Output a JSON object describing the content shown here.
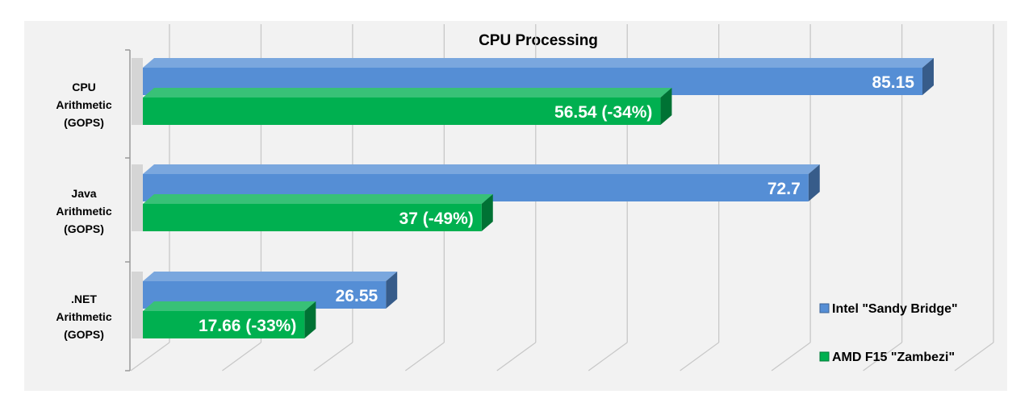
{
  "chart_data": {
    "type": "bar",
    "orientation": "horizontal",
    "title": "CPU Processing",
    "categories": [
      [
        "CPU",
        "Arithmetic",
        "(GOPS)"
      ],
      [
        "Java",
        "Arithmetic",
        "(GOPS)"
      ],
      [
        ".NET",
        "Arithmetic",
        "(GOPS)"
      ]
    ],
    "series": [
      {
        "name": "Intel \"Sandy Bridge\"",
        "color": "#558ed5",
        "values": [
          85.15,
          72.7,
          26.55
        ],
        "labels": [
          "85.15",
          "72.7",
          "26.55"
        ]
      },
      {
        "name": "AMD F15 \"Zambezi\"",
        "color": "#00b050",
        "values": [
          56.54,
          37,
          17.66
        ],
        "labels": [
          "56.54 (-34%)",
          "37 (-49%)",
          "17.66 (-33%)"
        ]
      }
    ],
    "xlim": [
      0,
      90
    ],
    "grid": true,
    "legend": "right",
    "background": "#f2f2f2"
  }
}
